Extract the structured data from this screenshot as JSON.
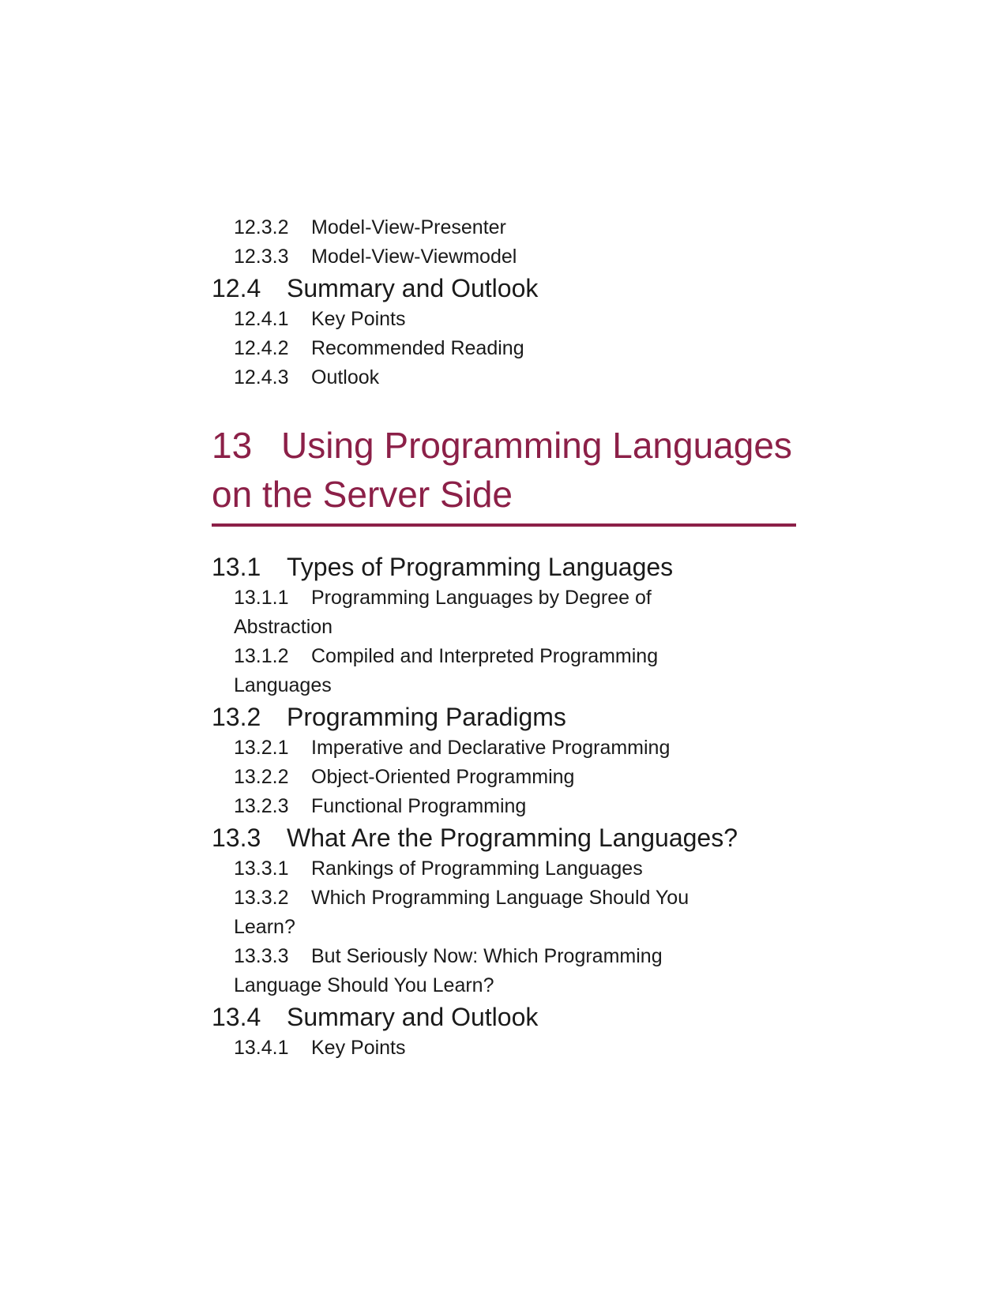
{
  "toc_before": [
    {
      "level": "sub",
      "number": "12.3.2",
      "title": "Model-View-Presenter"
    },
    {
      "level": "sub",
      "number": "12.3.3",
      "title": "Model-View-Viewmodel"
    },
    {
      "level": "sec",
      "number": "12.4",
      "title": "Summary and Outlook"
    },
    {
      "level": "sub",
      "number": "12.4.1",
      "title": "Key Points"
    },
    {
      "level": "sub",
      "number": "12.4.2",
      "title": "Recommended Reading"
    },
    {
      "level": "sub",
      "number": "12.4.3",
      "title": "Outlook"
    }
  ],
  "chapter": {
    "number": "13",
    "title_line1": "Using Programming Languages",
    "title_line2": "on the Server Side"
  },
  "toc_after": [
    {
      "level": "sec",
      "number": "13.1",
      "title": "Types of Programming Languages"
    },
    {
      "level": "sub",
      "number": "13.1.1",
      "title": "Programming Languages by Degree of",
      "cont": "Abstraction"
    },
    {
      "level": "sub",
      "number": "13.1.2",
      "title": "Compiled and Interpreted Programming",
      "cont": "Languages"
    },
    {
      "level": "sec",
      "number": "13.2",
      "title": "Programming Paradigms"
    },
    {
      "level": "sub",
      "number": "13.2.1",
      "title": "Imperative and Declarative Programming"
    },
    {
      "level": "sub",
      "number": "13.2.2",
      "title": "Object-Oriented Programming"
    },
    {
      "level": "sub",
      "number": "13.2.3",
      "title": "Functional Programming"
    },
    {
      "level": "sec",
      "number": "13.3",
      "title": "What Are the Programming Languages?"
    },
    {
      "level": "sub",
      "number": "13.3.1",
      "title": "Rankings of Programming Languages"
    },
    {
      "level": "sub",
      "number": "13.3.2",
      "title": "Which Programming Language Should You",
      "cont": "Learn?"
    },
    {
      "level": "sub",
      "number": "13.3.3",
      "title": "But Seriously Now: Which Programming",
      "cont": "Language Should You Learn?"
    },
    {
      "level": "sec",
      "number": "13.4",
      "title": "Summary and Outlook"
    },
    {
      "level": "sub",
      "number": "13.4.1",
      "title": "Key Points"
    }
  ],
  "colors": {
    "chapter_accent": "#8c2048",
    "text": "#1a1a1a"
  }
}
